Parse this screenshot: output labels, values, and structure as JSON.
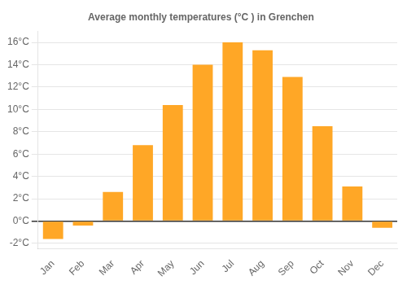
{
  "chart_data": {
    "type": "bar",
    "title": "Average monthly temperatures (°C ) in Grenchen",
    "categories": [
      "Jan",
      "Feb",
      "Mar",
      "Apr",
      "May",
      "Jun",
      "Jul",
      "Aug",
      "Sep",
      "Oct",
      "Nov",
      "Dec"
    ],
    "values": [
      -1.6,
      -0.4,
      2.6,
      6.8,
      10.4,
      14.0,
      16.0,
      15.3,
      12.9,
      8.5,
      3.1,
      -0.6
    ],
    "color": "#FFA726",
    "ylim": [
      -2.5,
      17
    ],
    "yticks": [
      {
        "value": -2,
        "label": "-2°C"
      },
      {
        "value": 0,
        "label": "0°C"
      },
      {
        "value": 2,
        "label": "2°C"
      },
      {
        "value": 4,
        "label": "4°C"
      },
      {
        "value": 6,
        "label": "6°C"
      },
      {
        "value": 8,
        "label": "8°C"
      },
      {
        "value": 10,
        "label": "10°C"
      },
      {
        "value": 12,
        "label": "12°C"
      },
      {
        "value": 14,
        "label": "14°C"
      },
      {
        "value": 16,
        "label": "16°C"
      }
    ],
    "grid": true
  }
}
